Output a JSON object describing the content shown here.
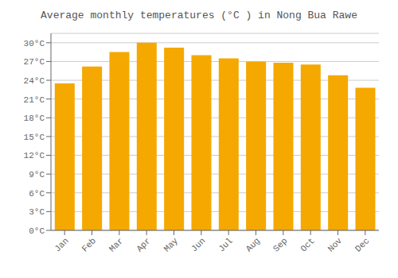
{
  "chart_data": {
    "type": "bar",
    "title": "Average monthly temperatures (°C ) in Nong Bua Rawe",
    "categories": [
      "Jan",
      "Feb",
      "Mar",
      "Apr",
      "May",
      "Jun",
      "Jul",
      "Aug",
      "Sep",
      "Oct",
      "Nov",
      "Dec"
    ],
    "values": [
      23.5,
      26.2,
      28.5,
      30.0,
      29.2,
      28.0,
      27.5,
      27.0,
      26.8,
      26.5,
      24.8,
      22.8
    ],
    "color": "#F5A800",
    "ylim": [
      0,
      31.5
    ],
    "yticks": [
      {
        "value": 0,
        "label": "0°C"
      },
      {
        "value": 3,
        "label": "3°C"
      },
      {
        "value": 6,
        "label": "6°C"
      },
      {
        "value": 9,
        "label": "9°C"
      },
      {
        "value": 12,
        "label": "12°C"
      },
      {
        "value": 15,
        "label": "15°C"
      },
      {
        "value": 18,
        "label": "18°C"
      },
      {
        "value": 21,
        "label": "21°C"
      },
      {
        "value": 24,
        "label": "24°C"
      },
      {
        "value": 27,
        "label": "27°C"
      },
      {
        "value": 30,
        "label": "30°C"
      }
    ],
    "grid": true
  }
}
